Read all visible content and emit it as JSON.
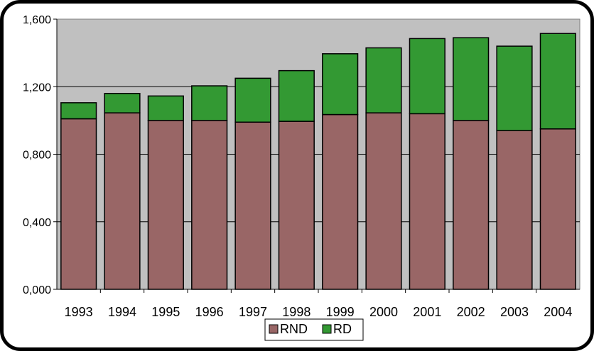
{
  "chart_data": {
    "type": "bar",
    "stacked": true,
    "categories": [
      "1993",
      "1994",
      "1995",
      "1996",
      "1997",
      "1998",
      "1999",
      "2000",
      "2001",
      "2002",
      "2003",
      "2004"
    ],
    "series": [
      {
        "name": "RND",
        "color": "#996666",
        "values": [
          1.01,
          1.045,
          1.0,
          1.0,
          0.99,
          0.995,
          1.035,
          1.045,
          1.04,
          1.0,
          0.94,
          0.95
        ]
      },
      {
        "name": "RD",
        "color": "#339933",
        "values": [
          0.095,
          0.115,
          0.145,
          0.205,
          0.26,
          0.3,
          0.36,
          0.385,
          0.445,
          0.49,
          0.5,
          0.565
        ]
      }
    ],
    "title": "",
    "xlabel": "",
    "ylabel": "",
    "ylim": [
      0,
      1.6
    ],
    "yticks": [
      "0,000",
      "0,400",
      "0,800",
      "1,200",
      "1,600"
    ],
    "ytick_values": [
      0,
      0.4,
      0.8,
      1.2,
      1.6
    ],
    "grid": true,
    "legend_position": "bottom-center",
    "plot_background": "#c0c0c0"
  }
}
